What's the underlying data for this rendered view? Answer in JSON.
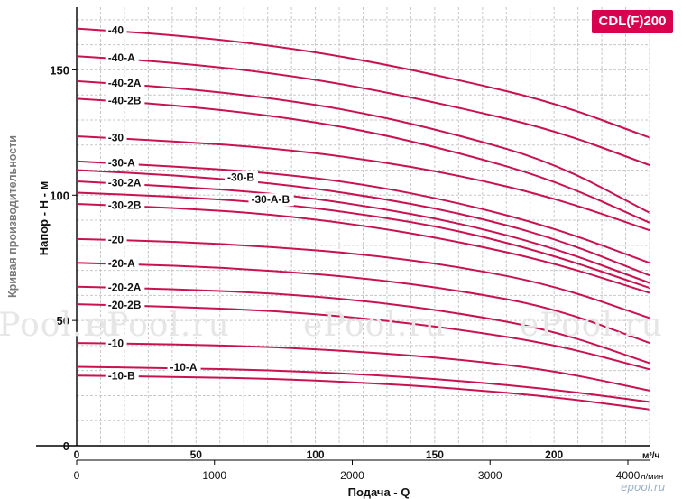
{
  "chart_data": {
    "type": "line",
    "title": "CDL(F)200",
    "ylabel": "Напор - Н - м",
    "xlabel": "Подача - Q",
    "side_title": "Кривая производительности",
    "x_unit_top": "м³/ч",
    "x_unit_bottom": "л/мин",
    "xlim": [
      0,
      240
    ],
    "ylim": [
      0,
      175
    ],
    "x_ticks_top": [
      0,
      50,
      100,
      150,
      200
    ],
    "x_ticks_bottom": [
      0,
      1000,
      2000,
      3000,
      4000
    ],
    "y_ticks": [
      0,
      50,
      100,
      150
    ],
    "grid": true,
    "series": [
      {
        "name": "-40",
        "x": [
          0,
          40,
          80,
          120,
          160,
          200,
          240
        ],
        "y": [
          166.5,
          164,
          160,
          154,
          146,
          137,
          123
        ]
      },
      {
        "name": "-40-A",
        "x": [
          0,
          40,
          80,
          120,
          160,
          200,
          240
        ],
        "y": [
          155.5,
          153,
          149,
          143,
          135,
          126,
          112
        ]
      },
      {
        "name": "-40-2A",
        "x": [
          0,
          40,
          80,
          120,
          160,
          200,
          240
        ],
        "y": [
          145.5,
          143,
          139,
          133,
          124,
          113,
          93
        ]
      },
      {
        "name": "-40-2B",
        "x": [
          0,
          40,
          80,
          120,
          160,
          200,
          240
        ],
        "y": [
          138.5,
          136,
          132,
          126,
          117,
          106,
          89
        ]
      },
      {
        "name": "-30",
        "x": [
          0,
          40,
          80,
          120,
          160,
          200,
          240
        ],
        "y": [
          123.5,
          121.5,
          119,
          114.5,
          108,
          99,
          86
        ]
      },
      {
        "name": "-30-A",
        "x": [
          0,
          40,
          80,
          120,
          160,
          200,
          240
        ],
        "y": [
          113.5,
          111.5,
          109,
          104.5,
          97,
          87,
          73
        ]
      },
      {
        "name": "-30-B",
        "x": [
          0,
          40,
          80,
          120,
          160,
          200,
          240
        ],
        "y": [
          110,
          108,
          105,
          100,
          93,
          83,
          68
        ]
      },
      {
        "name": "-30-2A",
        "x": [
          0,
          40,
          80,
          120,
          160,
          200,
          240
        ],
        "y": [
          105.5,
          103.5,
          101,
          96,
          89,
          79,
          65
        ]
      },
      {
        "name": "-30-A-B",
        "x": [
          0,
          40,
          80,
          120,
          160,
          200,
          240
        ],
        "y": [
          101,
          99.5,
          97,
          92.5,
          86,
          76,
          63
        ]
      },
      {
        "name": "-30-2B",
        "x": [
          0,
          40,
          80,
          120,
          160,
          200,
          240
        ],
        "y": [
          96.5,
          95,
          92.5,
          88,
          81.5,
          73,
          61
        ]
      },
      {
        "name": "-20",
        "x": [
          0,
          40,
          80,
          120,
          160,
          200,
          240
        ],
        "y": [
          82.5,
          81.5,
          79.5,
          76.5,
          71.5,
          64,
          51
        ]
      },
      {
        "name": "-20-A",
        "x": [
          0,
          40,
          80,
          120,
          160,
          200,
          240
        ],
        "y": [
          73,
          72,
          70,
          67,
          62,
          55,
          41
        ]
      },
      {
        "name": "-20-2A",
        "x": [
          0,
          40,
          80,
          120,
          160,
          200,
          240
        ],
        "y": [
          63.5,
          62.5,
          61,
          58,
          53,
          46,
          33
        ]
      },
      {
        "name": "-20-2B",
        "x": [
          0,
          40,
          80,
          120,
          160,
          200,
          240
        ],
        "y": [
          56.5,
          55.5,
          54,
          51,
          46.5,
          40.5,
          30.5
        ]
      },
      {
        "name": "-10",
        "x": [
          0,
          40,
          80,
          120,
          160,
          200,
          240
        ],
        "y": [
          41,
          40.5,
          39.5,
          37.5,
          34.5,
          30,
          22
        ]
      },
      {
        "name": "-10-A",
        "x": [
          0,
          40,
          80,
          120,
          160,
          200,
          240
        ],
        "y": [
          31.5,
          31,
          30.2,
          28.5,
          26,
          22.5,
          17.5
        ]
      },
      {
        "name": "-10-B",
        "x": [
          0,
          40,
          80,
          120,
          160,
          200,
          240
        ],
        "y": [
          28,
          27.5,
          26.8,
          25.2,
          22.8,
          19.5,
          14.5
        ]
      }
    ],
    "colors": {
      "curve": "#c8134f",
      "grid": "#c8c8c8",
      "axis": "#000000",
      "badge": "#d9004e"
    }
  },
  "watermark": "ePool.ru",
  "brand": "epool.ru"
}
